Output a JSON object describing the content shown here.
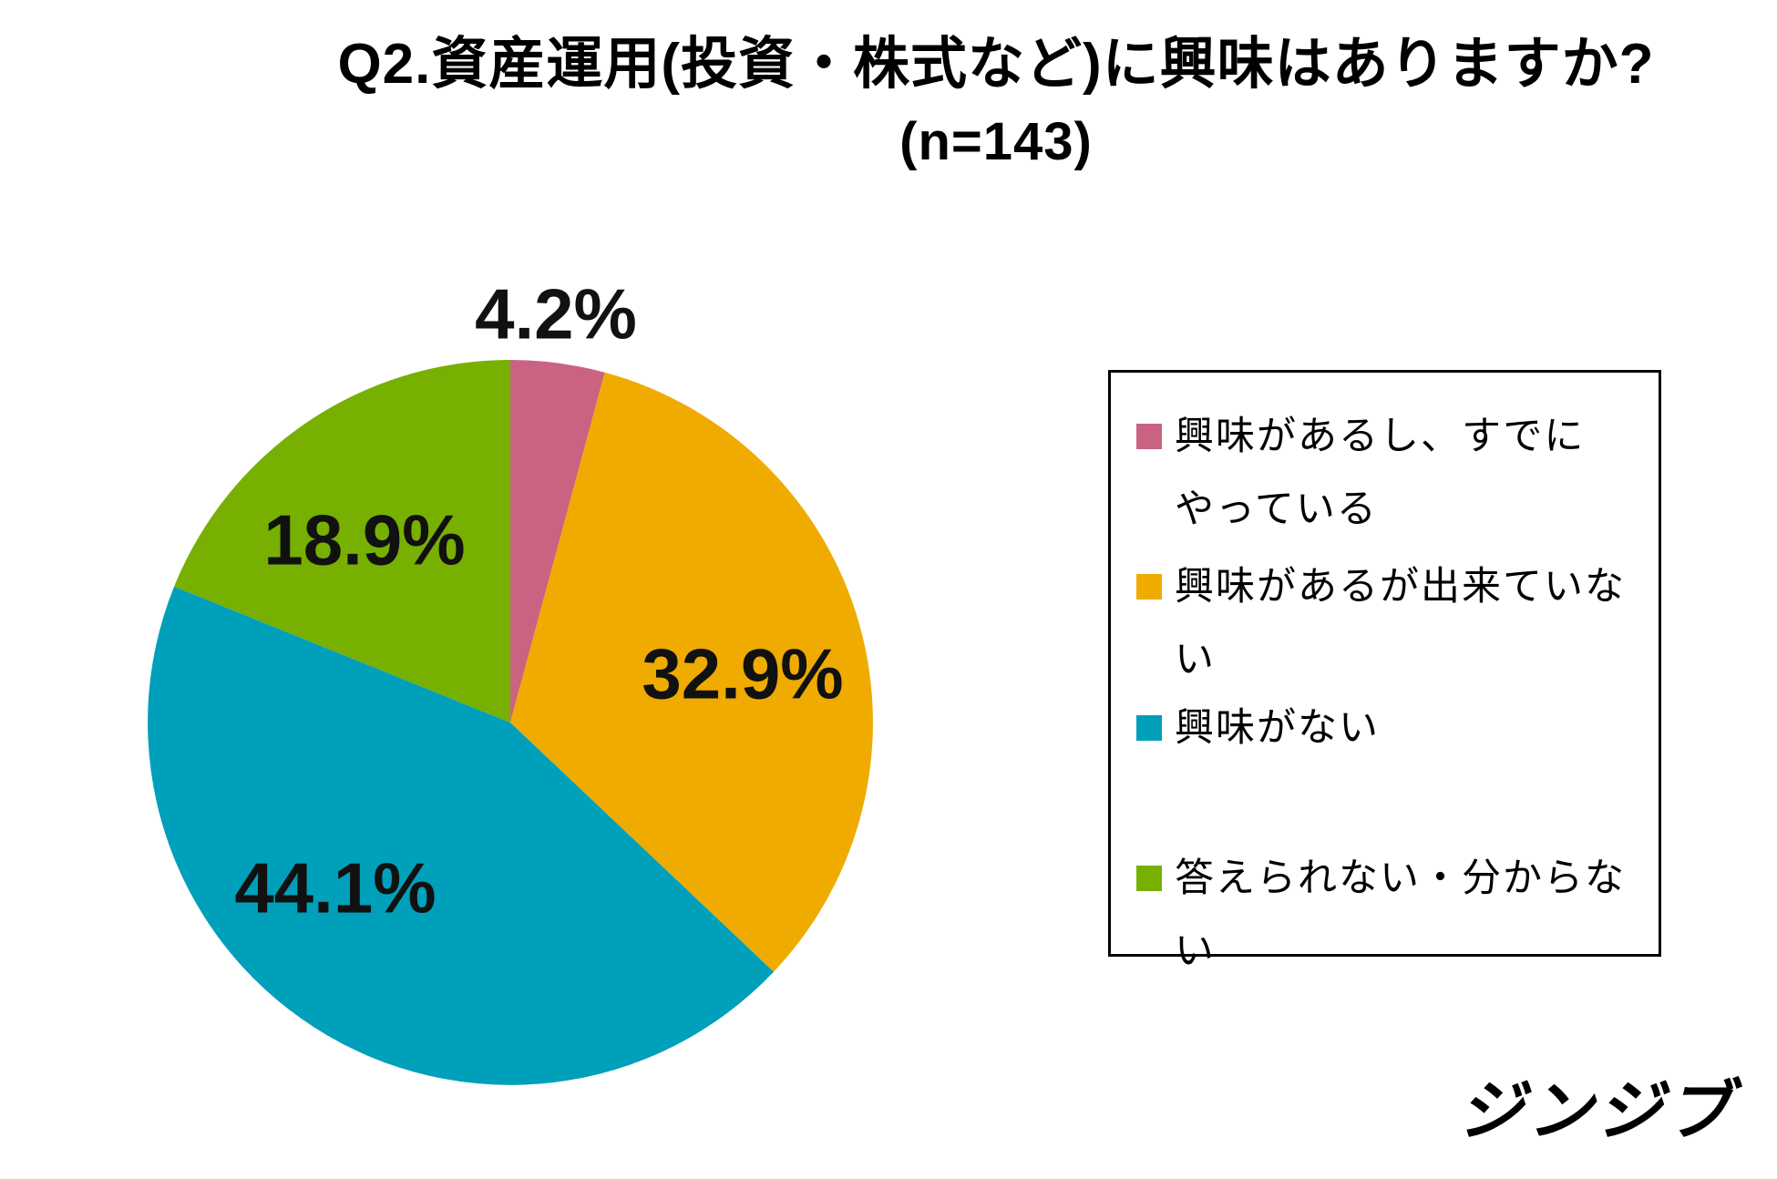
{
  "page": {
    "title": "Q2.資産運用(投資・株式など)に興味はありますか?",
    "subtitle": "(n=143)",
    "logo": "ジンジブ"
  },
  "chart_data": {
    "type": "pie",
    "title": "Q2.資産運用(投資・株式など)に興味はありますか?",
    "subtitle": "(n=143)",
    "sample_size": 143,
    "categories": [
      "興味があるし、すでにやっている",
      "興味があるが出来ていない",
      "興味がない",
      "答えられない・分からない"
    ],
    "values": [
      4.2,
      32.9,
      44.1,
      18.9
    ],
    "labels": [
      "4.2%",
      "32.9%",
      "44.1%",
      "18.9%"
    ],
    "unit": "%",
    "colors": [
      "#ca6381",
      "#f0ab00",
      "#00a0ba",
      "#77b000"
    ],
    "rotation": "starts at 12 o'clock, clockwise",
    "legend_position": "right"
  },
  "legend": {
    "items": [
      {
        "color": "#ca6381",
        "label": "興味があるし、すでにやっている",
        "lines": [
          "興味があるし、すでに",
          "やっている"
        ]
      },
      {
        "color": "#f0ab00",
        "label": "興味があるが出来ていない",
        "lines": [
          "興味があるが出来ていな",
          "い"
        ]
      },
      {
        "color": "#00a0ba",
        "label": "興味がない",
        "lines": [
          "興味がない"
        ]
      },
      {
        "color": "#77b000",
        "label": "答えられない・分からない",
        "lines": [
          "答えられない・分からな",
          "い"
        ]
      }
    ]
  }
}
